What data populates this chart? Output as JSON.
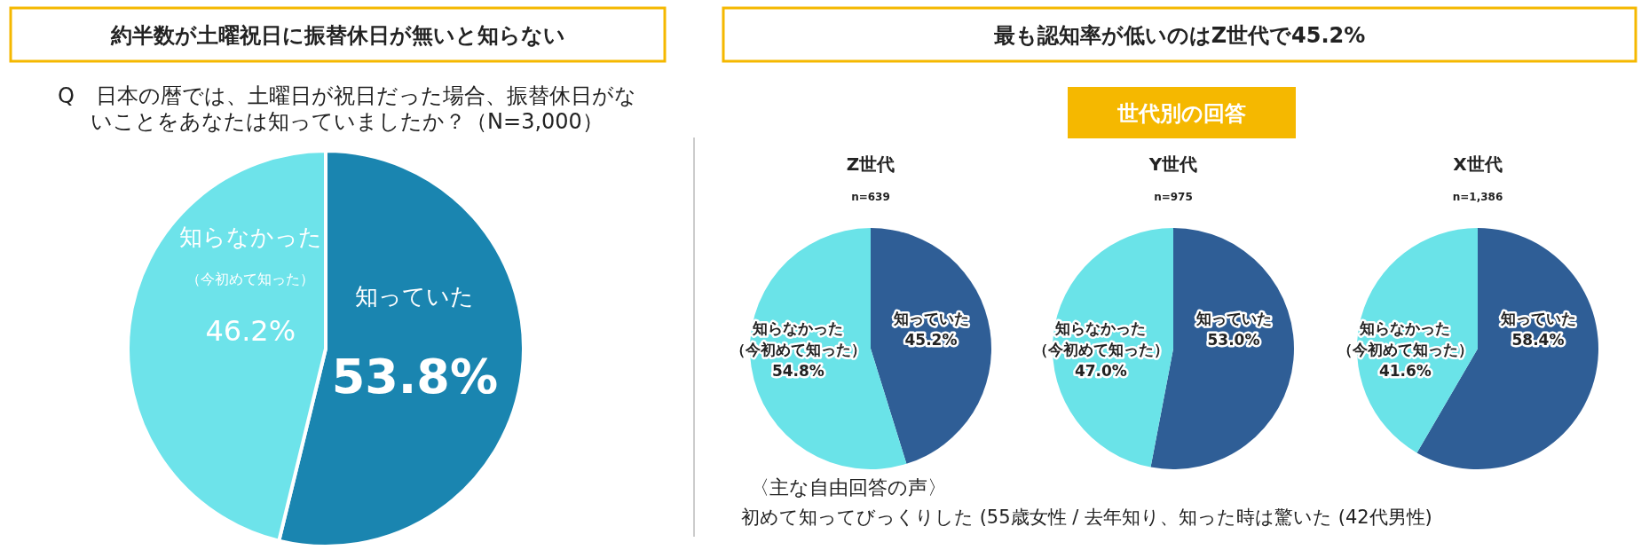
{
  "chart_data": [
    {
      "type": "pie",
      "title": "約半数が土曜祝日に振替休日が無いと知らない",
      "subtitle": "Q　日本の暦では、土曜日が祝日だった場合、振替休日がないことをあなたは知っていましたか？（N=3,000）",
      "categories": [
        "知っていた",
        "知らなかった（今初めて知った）"
      ],
      "values": [
        53.8,
        46.2
      ],
      "colors": [
        "#1a85b0",
        "#6de3ea"
      ],
      "value_labels": [
        "53.8%",
        "46.2%"
      ]
    },
    {
      "type": "other",
      "title": "最も認知率が低いのはZ世代で45.2%",
      "subtitle": "世代別の回答",
      "annotations": [
        "〈主な自由回答の声〉",
        "初めて知ってびっくりした (55歳女性 / 去年知り、知った時は驚いた (42代男性)"
      ]
    },
    {
      "type": "pie",
      "title": "Z世代",
      "subtitle": "n=639",
      "categories": [
        "知っていた",
        "知らなかった（今初めて知った）"
      ],
      "values": [
        45.2,
        54.8
      ],
      "colors": [
        "#2f5e96",
        "#6ae3e8"
      ],
      "value_labels": [
        "45.2%",
        "54.8%"
      ]
    },
    {
      "type": "pie",
      "title": "Y世代",
      "subtitle": "n=975",
      "categories": [
        "知っていた",
        "知らなかった（今初めて知った）"
      ],
      "values": [
        53.0,
        47.0
      ],
      "colors": [
        "#2f5e96",
        "#6ae3e8"
      ],
      "value_labels": [
        "53.0%",
        "47.0%"
      ]
    },
    {
      "type": "pie",
      "title": "X世代",
      "subtitle": "n=1,386",
      "categories": [
        "知っていた",
        "知らなかった（今初めて知った）"
      ],
      "values": [
        58.4,
        41.6
      ],
      "colors": [
        "#2f5e96",
        "#6ae3e8"
      ],
      "value_labels": [
        "58.4%",
        "41.6%"
      ]
    }
  ]
}
